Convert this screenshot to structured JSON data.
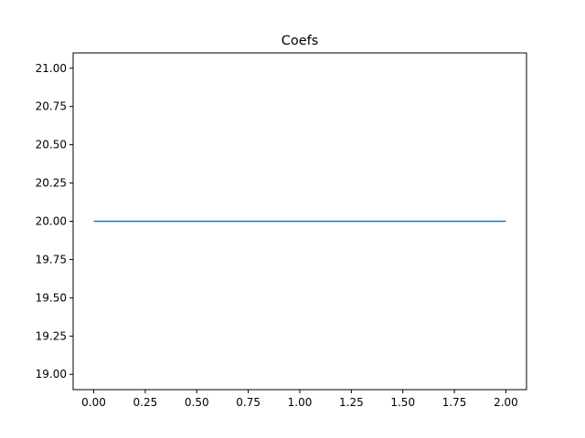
{
  "chart_data": {
    "type": "line",
    "title": "Coefs",
    "xlabel": "",
    "ylabel": "",
    "x": [
      0,
      1,
      2
    ],
    "series": [
      {
        "values": [
          20,
          20,
          20
        ],
        "color": "#1f77b4"
      }
    ],
    "xlim": [
      -0.1,
      2.1
    ],
    "ylim": [
      18.9,
      21.1
    ],
    "xticks": [
      0,
      0.25,
      0.5,
      0.75,
      1,
      1.25,
      1.5,
      1.75,
      2
    ],
    "xtick_labels": [
      "0.00",
      "0.25",
      "0.50",
      "0.75",
      "1.00",
      "1.25",
      "1.50",
      "1.75",
      "2.00"
    ],
    "yticks": [
      19,
      19.25,
      19.5,
      19.75,
      20,
      20.25,
      20.5,
      20.75,
      21
    ],
    "ytick_labels": [
      "19.00",
      "19.25",
      "19.50",
      "19.75",
      "20.00",
      "20.25",
      "20.50",
      "20.75",
      "21.00"
    ],
    "grid": false,
    "legend": "none"
  }
}
